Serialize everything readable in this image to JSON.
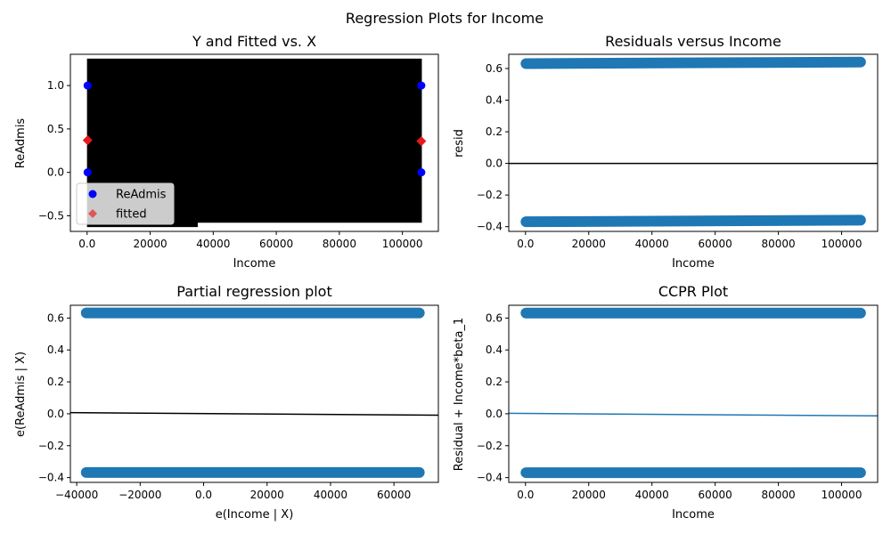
{
  "figure": {
    "suptitle": "Regression Plots for Income"
  },
  "colors": {
    "readmis": "#0000ff",
    "fitted": "#e8191b",
    "vlines": "#000000",
    "scatter": "#1f77b4",
    "fitline": "#000000",
    "ccprline": "#1f77b4"
  },
  "chart_data": [
    {
      "id": "fit",
      "type": "scatter",
      "title": "Y and Fitted vs. X",
      "xlabel": "Income",
      "ylabel": "ReAdmis",
      "xlim": [
        -5300,
        111400
      ],
      "ylim": [
        -0.68,
        1.36
      ],
      "xticks": [
        0,
        20000,
        40000,
        60000,
        80000,
        100000
      ],
      "yticks": [
        -0.5,
        0.0,
        0.5,
        1.0
      ],
      "grid": false,
      "legend": {
        "position": "lower-left",
        "entries": [
          "ReAdmis",
          "fitted"
        ]
      },
      "series": [
        {
          "name": "ReAdmis",
          "marker": "circle",
          "x": [
            150,
            106000,
            150,
            106000
          ],
          "y": [
            1,
            1,
            0,
            0
          ]
        },
        {
          "name": "fitted",
          "marker": "diamond",
          "x": [
            150,
            106000
          ],
          "y": [
            0.369,
            0.359
          ]
        }
      ],
      "vlines": {
        "xmin": 150,
        "xmax": 106000,
        "step": 220,
        "low": -0.58,
        "high": 1.31,
        "low_start": 35000,
        "low_start_value": -0.63
      }
    },
    {
      "id": "resid",
      "type": "scatter",
      "title": "Residuals versus Income",
      "xlabel": "Income",
      "ylabel": "resid",
      "xlim": [
        -5300,
        111400
      ],
      "ylim": [
        -0.43,
        0.69
      ],
      "xticks": [
        0,
        20000,
        40000,
        60000,
        80000,
        100000
      ],
      "yticks": [
        -0.4,
        -0.2,
        0.0,
        0.2,
        0.4,
        0.6
      ],
      "grid": false,
      "hline": 0,
      "bands": [
        {
          "xmin": 150,
          "xmax": 106000,
          "y_start": 0.631,
          "y_end": 0.641
        },
        {
          "xmin": 150,
          "xmax": 106000,
          "y_start": -0.369,
          "y_end": -0.359
        }
      ]
    },
    {
      "id": "partial",
      "type": "scatter",
      "title": "Partial regression plot",
      "xlabel": "e(Income | X)",
      "ylabel": "e(ReAdmis | X)",
      "xlim": [
        -42000,
        74000
      ],
      "ylim": [
        -0.43,
        0.68
      ],
      "xticks": [
        -40000,
        -20000,
        0,
        20000,
        40000,
        60000
      ],
      "yticks": [
        -0.4,
        -0.2,
        0.0,
        0.2,
        0.4,
        0.6
      ],
      "grid": false,
      "bands": [
        {
          "xmin": -37000,
          "xmax": 68000,
          "y_start": 0.632,
          "y_end": 0.632
        },
        {
          "xmin": -37000,
          "xmax": 68000,
          "y_start": -0.368,
          "y_end": -0.368
        }
      ],
      "fit_line": {
        "x": [
          -42000,
          74000
        ],
        "y": [
          0.007,
          -0.009
        ]
      }
    },
    {
      "id": "ccpr",
      "type": "scatter",
      "title": "CCPR Plot",
      "xlabel": "Income",
      "ylabel": "Residual + Income*beta_1",
      "xlim": [
        -5300,
        111400
      ],
      "ylim": [
        -0.43,
        0.68
      ],
      "xticks": [
        0,
        20000,
        40000,
        60000,
        80000,
        100000
      ],
      "yticks": [
        -0.4,
        -0.2,
        0.0,
        0.2,
        0.4,
        0.6
      ],
      "grid": false,
      "bands": [
        {
          "xmin": 150,
          "xmax": 106000,
          "y_start": 0.631,
          "y_end": 0.631
        },
        {
          "xmin": 150,
          "xmax": 106000,
          "y_start": -0.369,
          "y_end": -0.369
        }
      ],
      "fit_line": {
        "x": [
          -5300,
          111400
        ],
        "y": [
          0.003,
          -0.013
        ]
      }
    }
  ]
}
